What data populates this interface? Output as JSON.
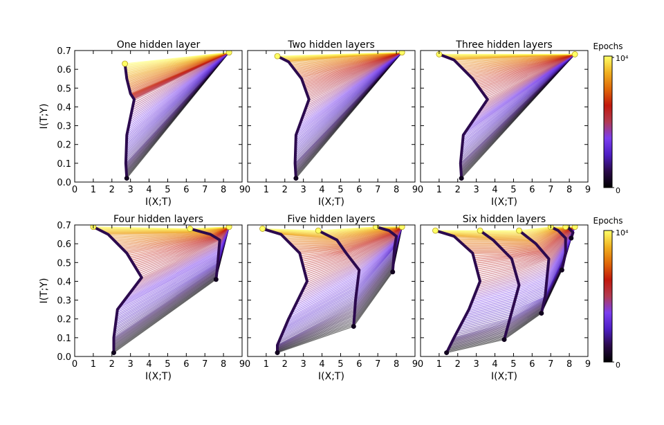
{
  "colors": {
    "colormap": [
      "#000000",
      "#2a0a4a",
      "#4d1ec4",
      "#7b3ef0",
      "#b23a52",
      "#c2180c",
      "#e06808",
      "#f0b020",
      "#ffff66"
    ],
    "path_color": "#2c0a4e",
    "background": "#ffffff"
  },
  "colorbars": [
    {
      "title": "Epochs",
      "max_label": "10⁴",
      "min_label": "0"
    },
    {
      "title": "Epochs",
      "max_label": "10⁴",
      "min_label": "0"
    }
  ],
  "chart_data": [
    {
      "type": "line",
      "title": "One hidden layer",
      "xlabel": "I(X;T)",
      "ylabel": "I(T;Y)",
      "xlim": [
        0,
        9
      ],
      "ylim": [
        0,
        0.7
      ],
      "xticks": [
        "0",
        "1",
        "2",
        "3",
        "4",
        "5",
        "6",
        "7",
        "8",
        "9"
      ],
      "yticks": [
        "0.0",
        "0.1",
        "0.2",
        "0.3",
        "0.4",
        "0.5",
        "0.6",
        "0.7"
      ],
      "series": [
        {
          "layer": 1,
          "points": [
            [
              2.8,
              0.02
            ],
            [
              2.75,
              0.1
            ],
            [
              2.8,
              0.25
            ],
            [
              3.2,
              0.44
            ],
            [
              3.0,
              0.47
            ],
            [
              2.8,
              0.55
            ],
            [
              2.7,
              0.63
            ]
          ]
        },
        {
          "layer": 2,
          "points": [
            [
              8.3,
              0.69
            ]
          ]
        }
      ]
    },
    {
      "type": "line",
      "title": "Two hidden layers",
      "xlabel": "I(X;T)",
      "ylabel": "",
      "xlim": [
        0,
        9
      ],
      "ylim": [
        0,
        0.7
      ],
      "xticks": [
        "0",
        "1",
        "2",
        "3",
        "4",
        "5",
        "6",
        "7",
        "8",
        "9"
      ],
      "yticks": [],
      "series": [
        {
          "layer": 1,
          "points": [
            [
              2.6,
              0.02
            ],
            [
              2.55,
              0.1
            ],
            [
              2.6,
              0.25
            ],
            [
              3.3,
              0.44
            ],
            [
              2.9,
              0.55
            ],
            [
              2.2,
              0.64
            ],
            [
              1.6,
              0.67
            ]
          ]
        },
        {
          "layer": 2,
          "points": [
            [
              8.3,
              0.69
            ]
          ]
        }
      ]
    },
    {
      "type": "line",
      "title": "Three hidden layers",
      "xlabel": "I(X;T)",
      "ylabel": "",
      "xlim": [
        0,
        9
      ],
      "ylim": [
        0,
        0.7
      ],
      "xticks": [
        "0",
        "1",
        "2",
        "3",
        "4",
        "5",
        "6",
        "7",
        "8",
        "9"
      ],
      "yticks": [],
      "series": [
        {
          "layer": 1,
          "points": [
            [
              2.2,
              0.02
            ],
            [
              2.15,
              0.1
            ],
            [
              2.3,
              0.25
            ],
            [
              3.6,
              0.44
            ],
            [
              2.8,
              0.55
            ],
            [
              1.8,
              0.65
            ],
            [
              1.0,
              0.68
            ]
          ]
        },
        {
          "layer": 2,
          "points": [
            [
              8.3,
              0.68
            ]
          ]
        }
      ]
    },
    {
      "type": "line",
      "title": "Four hidden layers",
      "xlabel": "I(X;T)",
      "ylabel": "I(T;Y)",
      "xlim": [
        0,
        9
      ],
      "ylim": [
        0,
        0.7
      ],
      "xticks": [
        "0",
        "1",
        "2",
        "3",
        "4",
        "5",
        "6",
        "7",
        "8",
        "9"
      ],
      "yticks": [
        "0.0",
        "0.1",
        "0.2",
        "0.3",
        "0.4",
        "0.5",
        "0.6",
        "0.7"
      ],
      "series": [
        {
          "layer": 1,
          "points": [
            [
              2.1,
              0.02
            ],
            [
              2.1,
              0.1
            ],
            [
              2.3,
              0.25
            ],
            [
              3.6,
              0.42
            ],
            [
              2.8,
              0.55
            ],
            [
              1.8,
              0.65
            ],
            [
              1.0,
              0.69
            ]
          ]
        },
        {
          "layer": 2,
          "points": [
            [
              7.6,
              0.41
            ],
            [
              7.7,
              0.5
            ],
            [
              7.8,
              0.62
            ],
            [
              7.3,
              0.65
            ],
            [
              6.2,
              0.68
            ]
          ]
        },
        {
          "layer": 3,
          "points": [
            [
              8.3,
              0.69
            ]
          ]
        }
      ]
    },
    {
      "type": "line",
      "title": "Five hidden layers",
      "xlabel": "I(X;T)",
      "ylabel": "",
      "xlim": [
        0,
        9
      ],
      "ylim": [
        0,
        0.7
      ],
      "xticks": [
        "0",
        "1",
        "2",
        "3",
        "4",
        "5",
        "6",
        "7",
        "8",
        "9"
      ],
      "yticks": [],
      "series": [
        {
          "layer": 1,
          "points": [
            [
              1.6,
              0.02
            ],
            [
              1.6,
              0.06
            ],
            [
              2.2,
              0.2
            ],
            [
              3.2,
              0.4
            ],
            [
              2.8,
              0.55
            ],
            [
              1.8,
              0.65
            ],
            [
              0.8,
              0.68
            ]
          ]
        },
        {
          "layer": 2,
          "points": [
            [
              5.7,
              0.16
            ],
            [
              5.8,
              0.3
            ],
            [
              6.0,
              0.46
            ],
            [
              5.3,
              0.55
            ],
            [
              4.8,
              0.62
            ],
            [
              3.8,
              0.67
            ]
          ]
        },
        {
          "layer": 3,
          "points": [
            [
              7.8,
              0.45
            ],
            [
              7.9,
              0.58
            ],
            [
              8.0,
              0.64
            ],
            [
              7.6,
              0.67
            ],
            [
              6.9,
              0.69
            ]
          ]
        },
        {
          "layer": 4,
          "points": [
            [
              8.3,
              0.69
            ]
          ]
        }
      ]
    },
    {
      "type": "line",
      "title": "Six hidden layers",
      "xlabel": "I(X;T)",
      "ylabel": "",
      "xlim": [
        0,
        9
      ],
      "ylim": [
        0,
        0.7
      ],
      "xticks": [
        "0",
        "1",
        "2",
        "3",
        "4",
        "5",
        "6",
        "7",
        "8",
        "9"
      ],
      "yticks": [],
      "series": [
        {
          "layer": 1,
          "points": [
            [
              1.4,
              0.02
            ],
            [
              1.8,
              0.1
            ],
            [
              2.6,
              0.25
            ],
            [
              3.2,
              0.4
            ],
            [
              2.8,
              0.55
            ],
            [
              1.8,
              0.64
            ],
            [
              0.8,
              0.67
            ]
          ]
        },
        {
          "layer": 2,
          "points": [
            [
              4.5,
              0.09
            ],
            [
              4.8,
              0.2
            ],
            [
              5.3,
              0.38
            ],
            [
              4.9,
              0.52
            ],
            [
              3.9,
              0.62
            ],
            [
              3.2,
              0.67
            ]
          ]
        },
        {
          "layer": 3,
          "points": [
            [
              6.5,
              0.23
            ],
            [
              6.7,
              0.32
            ],
            [
              6.9,
              0.52
            ],
            [
              6.2,
              0.6
            ],
            [
              5.3,
              0.67
            ]
          ]
        },
        {
          "layer": 4,
          "points": [
            [
              7.6,
              0.46
            ],
            [
              7.8,
              0.55
            ],
            [
              7.8,
              0.63
            ],
            [
              7.4,
              0.67
            ],
            [
              7.0,
              0.69
            ]
          ]
        },
        {
          "layer": 5,
          "points": [
            [
              8.1,
              0.63
            ],
            [
              8.2,
              0.66
            ],
            [
              8.0,
              0.68
            ],
            [
              7.8,
              0.69
            ]
          ]
        },
        {
          "layer": 6,
          "points": [
            [
              8.3,
              0.69
            ]
          ]
        }
      ]
    }
  ]
}
